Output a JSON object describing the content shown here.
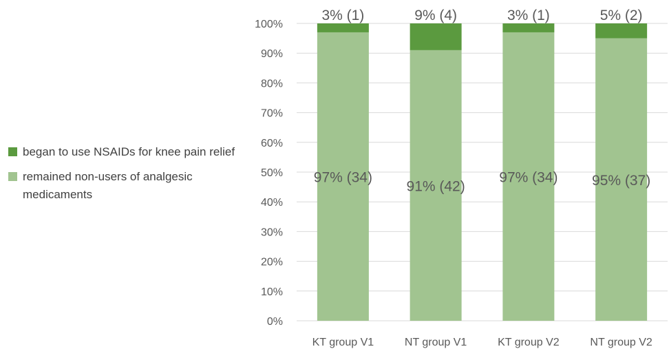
{
  "chart_data": {
    "type": "bar",
    "stacked": true,
    "percent": true,
    "categories": [
      "KT group V1",
      "NT group V1",
      "KT group V2",
      "NT group V2"
    ],
    "series": [
      {
        "name": "remained non-users of analgesic medicaments",
        "values": [
          97,
          91,
          97,
          95
        ],
        "labels": [
          "97% (34)",
          "91% (42)",
          "97% (34)",
          "95% (37)"
        ],
        "color": "#a1c490"
      },
      {
        "name": "began to use NSAIDs for knee pain relief",
        "values": [
          3,
          9,
          3,
          5
        ],
        "labels": [
          "3% (1)",
          "9% (4)",
          "3% (1)",
          "5% (2)"
        ],
        "color": "#5b9a3f"
      }
    ],
    "yticks": [
      "0%",
      "10%",
      "20%",
      "30%",
      "40%",
      "50%",
      "60%",
      "70%",
      "80%",
      "90%",
      "100%"
    ],
    "ylim": [
      0,
      100
    ],
    "grid": true,
    "legend_position": "left",
    "label_color": "#595959",
    "grid_color": "#d9d9d9"
  },
  "legend": {
    "items": [
      {
        "label": "began to use NSAIDs for knee pain relief",
        "color": "#5b9a3f"
      },
      {
        "label": "remained non-users of analgesic medicaments",
        "color": "#a1c490"
      }
    ]
  }
}
